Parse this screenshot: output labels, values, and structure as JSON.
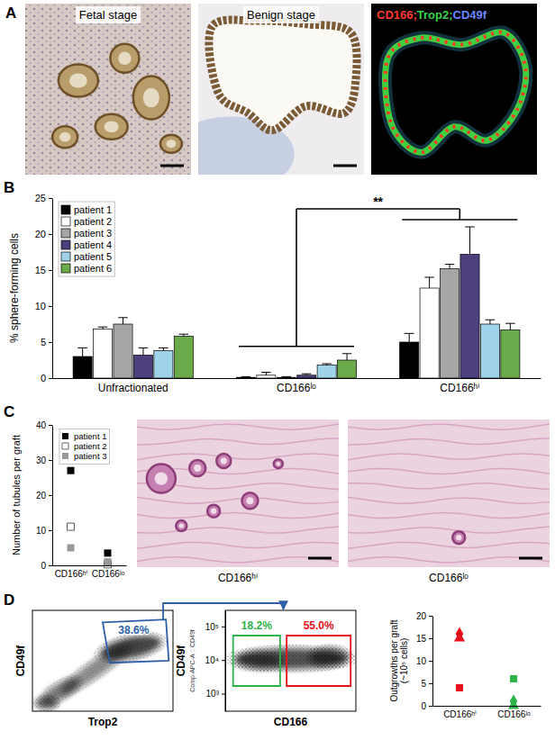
{
  "chart_data": [
    {
      "type": "image",
      "panel": "A",
      "images": [
        {
          "title": "Fetal stage"
        },
        {
          "title": "Benign stage"
        },
        {
          "title_parts": [
            {
              "text": "CD166;",
              "color": "#ff3b30"
            },
            {
              "text": "Trop2;",
              "color": "#39d353"
            },
            {
              "text": "CD49f",
              "color": "#6a86ff"
            }
          ]
        }
      ]
    },
    {
      "type": "bar",
      "panel": "B",
      "categories": [
        "Unfractionated",
        "CD166ˡᵒ",
        "CD166ʰⁱ"
      ],
      "y_label": "% sphere-forming cells",
      "ylim": [
        0,
        25
      ],
      "yticks": [
        0,
        5,
        10,
        15,
        20,
        25
      ],
      "legend": "top-left",
      "series": [
        {
          "name": "patient 1",
          "color": "#000000",
          "values": [
            3.0,
            0.1,
            5.0
          ],
          "errors": [
            1.2,
            0.1,
            1.2
          ]
        },
        {
          "name": "patient 2",
          "color": "#ffffff",
          "values": [
            6.8,
            0.4,
            12.5
          ],
          "errors": [
            0.3,
            0.4,
            1.5
          ]
        },
        {
          "name": "patient 3",
          "color": "#a6a6a6",
          "values": [
            7.5,
            0.1,
            15.2
          ],
          "errors": [
            0.9,
            0.1,
            0.6
          ]
        },
        {
          "name": "patient 4",
          "color": "#4e3f7f",
          "values": [
            3.2,
            0.4,
            17.2
          ],
          "errors": [
            1.0,
            0.2,
            3.8
          ]
        },
        {
          "name": "patient 5",
          "color": "#9fd3ea",
          "values": [
            3.8,
            1.8,
            7.5
          ],
          "errors": [
            0.4,
            0.2,
            0.6
          ]
        },
        {
          "name": "patient 6",
          "color": "#6aaa4a",
          "values": [
            5.8,
            2.5,
            6.7
          ],
          "errors": [
            0.3,
            0.9,
            0.9
          ]
        }
      ],
      "annotations": [
        {
          "text": "**",
          "between": [
            "CD166ˡᵒ",
            "CD166ʰⁱ"
          ]
        }
      ]
    },
    {
      "type": "scatter",
      "panel": "C",
      "categories": [
        "CD166ʰⁱ",
        "CD166ˡᵒ"
      ],
      "y_label": "Number of tubules per graft",
      "ylim": [
        0,
        40
      ],
      "yticks": [
        0,
        10,
        20,
        30,
        40
      ],
      "marker": "square",
      "legend": "top-left",
      "series": [
        {
          "name": "patient 1",
          "color": "#000000",
          "values": [
            27,
            3.5
          ]
        },
        {
          "name": "patient 2",
          "color": "#ffffff",
          "values": [
            11,
            0.3
          ]
        },
        {
          "name": "patient 3",
          "color": "#999999",
          "values": [
            5,
            1
          ]
        }
      ]
    },
    {
      "type": "image",
      "images": [
        {
          "caption": "CD166ʰⁱ"
        },
        {
          "caption": "CD166ˡᵒ"
        }
      ]
    },
    {
      "type": "flow_cytometry",
      "panel": "D",
      "x_label": "Trop2",
      "y_label": "CD49f",
      "tick_labels": false,
      "gates": [
        {
          "value": 38.6,
          "label": "38.6%",
          "color": "#2f5fa8"
        }
      ]
    },
    {
      "type": "flow_cytometry",
      "x_label": "CD166",
      "y_label": "CD49f",
      "annotations": [
        {
          "text": "Comp-APC-A :: CD49f"
        }
      ],
      "log": "y",
      "ylim": [
        300,
        300000
      ],
      "yticks": [
        {
          "value": 1000,
          "label": "10³"
        },
        {
          "value": 10000,
          "label": "10⁴"
        },
        {
          "value": 100000,
          "label": "10⁵"
        }
      ],
      "tick_labels": "y",
      "gates": [
        {
          "value": 18.2,
          "label": "18.2%",
          "color": "#2eb34a"
        },
        {
          "value": 55.0,
          "label": "55.0%",
          "color": "#e8101a"
        }
      ]
    },
    {
      "type": "scatter",
      "categories": [
        "CD166ʰⁱ",
        "CD166ˡᵒ"
      ],
      "y_label": "Outgrowths per graft (~10⁵ cells)",
      "ylim": [
        0,
        20
      ],
      "yticks": [
        0,
        5,
        10,
        15,
        20
      ],
      "series": [
        {
          "marker": "diamond",
          "colors": [
            "#e8101a",
            "#2eb34a"
          ],
          "values": [
            16,
            1
          ]
        },
        {
          "marker": "triangle",
          "colors": [
            "#e8101a",
            "#2eb34a"
          ],
          "values": [
            15,
            0
          ]
        },
        {
          "marker": "square",
          "colors": [
            "#e8101a",
            "#2eb34a"
          ],
          "values": [
            4,
            6
          ]
        }
      ]
    }
  ]
}
